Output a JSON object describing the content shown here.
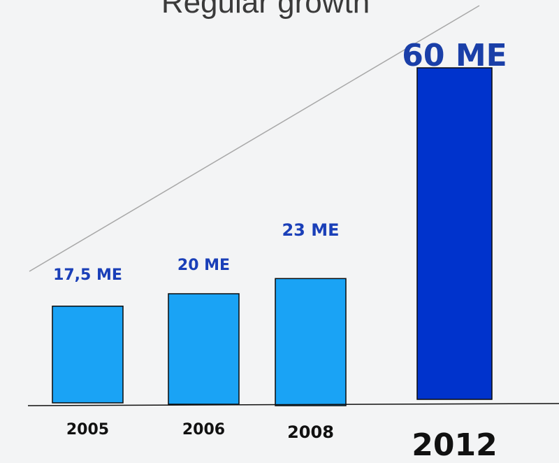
{
  "chart_data": {
    "type": "bar",
    "title": "Regular growth",
    "categories": [
      "2005",
      "2006",
      "2008",
      "2012"
    ],
    "values": [
      17.5,
      20,
      23,
      60
    ],
    "value_labels": [
      "17,5 ME",
      "20 ME",
      "23 ME",
      "60 ME"
    ],
    "xlabel": "",
    "ylabel": "",
    "grid": false,
    "legend": "none",
    "trend_line": true
  },
  "colors": {
    "bar": "#1aa3f5",
    "bar_highlight": "#0033cc",
    "value_label": "#1a3fb8",
    "value_label_highlight": "#1a3fa8",
    "trend_line": "#a8a8a8",
    "axis": "#111111"
  }
}
